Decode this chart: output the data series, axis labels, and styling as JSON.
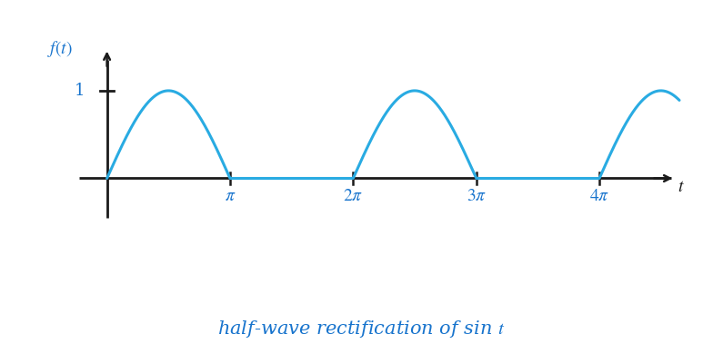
{
  "title_color": "#1874CD",
  "title_fontsize": 15,
  "curve_color": "#29ABE2",
  "curve_linewidth": 2.2,
  "axis_color": "#1a1a1a",
  "label_color": "#1874CD",
  "tick_label_color": "#1874CD",
  "one_label_color": "#1874CD",
  "xlim": [
    -0.7,
    14.8
  ],
  "ylim": [
    -0.55,
    1.55
  ],
  "background_color": "#ffffff",
  "figwidth": 7.95,
  "figheight": 3.9,
  "dpi": 100
}
